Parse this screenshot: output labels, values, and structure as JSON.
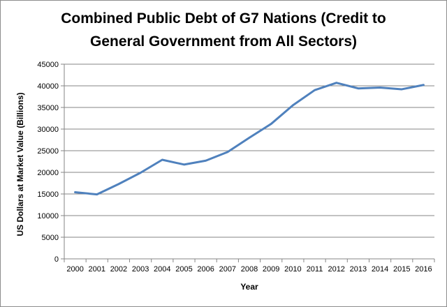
{
  "chart_data": {
    "type": "line",
    "title_line1": "Combined Public Debt of G7 Nations (Credit to",
    "title_line2": "General Government from All Sectors)",
    "xlabel": "Year",
    "ylabel": "US Dollars at Market Value (Billions)",
    "categories": [
      "2000",
      "2001",
      "2002",
      "2003",
      "2004",
      "2005",
      "2006",
      "2007",
      "2008",
      "2009",
      "2010",
      "2011",
      "2012",
      "2013",
      "2014",
      "2015",
      "2016"
    ],
    "series": [
      {
        "values": [
          15400,
          14900,
          17300,
          19900,
          22900,
          21800,
          22700,
          24700,
          28000,
          31200,
          35500,
          39000,
          40700,
          39400,
          39600,
          39200,
          40200
        ]
      }
    ],
    "ylim": [
      0,
      45000
    ],
    "yticks": [
      0,
      5000,
      10000,
      15000,
      20000,
      25000,
      30000,
      35000,
      40000,
      45000
    ],
    "grid": true,
    "legend": "none",
    "line_color": "#4f81bd"
  }
}
